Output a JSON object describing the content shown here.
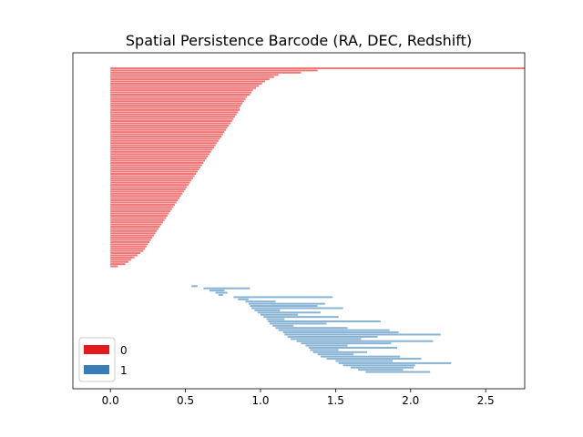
{
  "chart_data": {
    "type": "barcode",
    "title": "Spatial Persistence Barcode (RA, DEC, Redshift)",
    "xlabel": "",
    "ylabel": "",
    "xlim": [
      -0.25,
      2.76
    ],
    "x_ticks": [
      "0.0",
      "0.5",
      "1.0",
      "1.5",
      "2.0",
      "2.5"
    ],
    "x_tick_values": [
      0.0,
      0.5,
      1.0,
      1.5,
      2.0,
      2.5
    ],
    "grid": false,
    "legend": {
      "placement": "lower-left",
      "entries": [
        {
          "label": "0",
          "color": "#e41a1c"
        },
        {
          "label": "1",
          "color": "#377eb8"
        }
      ]
    },
    "series": [
      {
        "name": "0",
        "color": "#e41a1c",
        "alpha": 0.6,
        "note": "H0 bars, all born at 0.0; deaths sorted descending; one infinite bar",
        "infinite_death": true,
        "deaths": [
          1.38,
          1.27,
          1.12,
          1.09,
          1.06,
          1.03,
          1.01,
          0.99,
          0.97,
          0.95,
          0.94,
          0.93,
          0.91,
          0.9,
          0.89,
          0.88,
          0.87,
          0.86,
          0.86,
          0.85,
          0.84,
          0.83,
          0.82,
          0.81,
          0.8,
          0.79,
          0.78,
          0.77,
          0.76,
          0.75,
          0.74,
          0.73,
          0.72,
          0.71,
          0.7,
          0.69,
          0.68,
          0.67,
          0.66,
          0.65,
          0.64,
          0.63,
          0.62,
          0.61,
          0.6,
          0.59,
          0.58,
          0.57,
          0.56,
          0.55,
          0.54,
          0.53,
          0.52,
          0.51,
          0.5,
          0.49,
          0.48,
          0.47,
          0.46,
          0.45,
          0.44,
          0.43,
          0.42,
          0.41,
          0.4,
          0.39,
          0.38,
          0.37,
          0.36,
          0.35,
          0.34,
          0.33,
          0.32,
          0.31,
          0.3,
          0.29,
          0.28,
          0.27,
          0.26,
          0.25,
          0.24,
          0.23,
          0.22,
          0.2,
          0.18,
          0.16,
          0.14,
          0.12,
          0.1,
          0.05
        ]
      },
      {
        "name": "1",
        "color": "#377eb8",
        "alpha": 0.6,
        "note": "H1 bars as [birth, death], stacked below H0 bars",
        "intervals": [
          [
            0.54,
            0.58
          ],
          [
            0.62,
            0.93
          ],
          [
            0.66,
            0.76
          ],
          [
            0.7,
            0.78
          ],
          [
            0.72,
            0.75
          ],
          [
            0.82,
            1.48
          ],
          [
            0.85,
            0.92
          ],
          [
            0.9,
            1.1
          ],
          [
            0.92,
            1.43
          ],
          [
            0.93,
            1.38
          ],
          [
            0.94,
            1.55
          ],
          [
            0.96,
            1.13
          ],
          [
            0.98,
            1.4
          ],
          [
            1.0,
            1.25
          ],
          [
            1.02,
            1.52
          ],
          [
            1.04,
            1.16
          ],
          [
            1.05,
            1.8
          ],
          [
            1.06,
            1.44
          ],
          [
            1.08,
            1.22
          ],
          [
            1.1,
            1.58
          ],
          [
            1.12,
            1.86
          ],
          [
            1.15,
            1.92
          ],
          [
            1.16,
            2.2
          ],
          [
            1.18,
            1.78
          ],
          [
            1.2,
            1.67
          ],
          [
            1.24,
            2.15
          ],
          [
            1.27,
            1.87
          ],
          [
            1.3,
            1.58
          ],
          [
            1.32,
            1.91
          ],
          [
            1.33,
            1.52
          ],
          [
            1.35,
            1.71
          ],
          [
            1.38,
            1.62
          ],
          [
            1.4,
            1.93
          ],
          [
            1.44,
            2.07
          ],
          [
            1.5,
            1.88
          ],
          [
            1.52,
            2.27
          ],
          [
            1.55,
            2.03
          ],
          [
            1.6,
            2.02
          ],
          [
            1.65,
            1.95
          ],
          [
            1.7,
            2.13
          ]
        ]
      }
    ]
  }
}
